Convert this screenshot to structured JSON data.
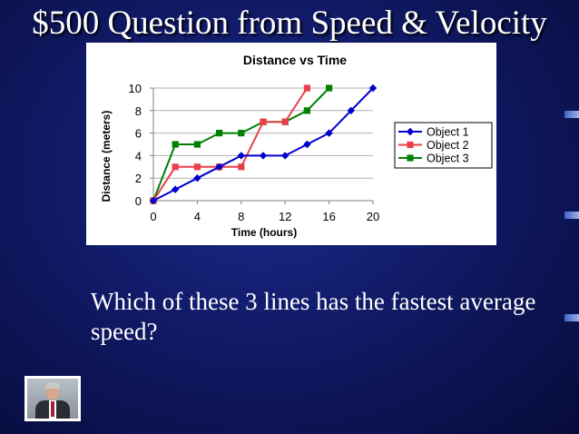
{
  "slide": {
    "title": "$500 Question from Speed & Velocity",
    "question": "Which of these 3 lines has the fastest average speed?"
  },
  "colors": {
    "background": "#101a66",
    "text": "#ffffff",
    "object_1": "#0000cc",
    "object_2": "#e8404a",
    "object_3": "#008000"
  },
  "icons": [
    "host-avatar"
  ],
  "chart_data": {
    "type": "line",
    "title": "Distance vs Time",
    "xlabel": "Time (hours)",
    "ylabel": "Distance (meters)",
    "xlim": [
      0,
      20
    ],
    "ylim": [
      0,
      10
    ],
    "x_ticks": [
      0,
      4,
      8,
      12,
      16,
      20
    ],
    "y_ticks": [
      0,
      2,
      4,
      6,
      8,
      10
    ],
    "legend": "right",
    "grid": "horizontal",
    "series": [
      {
        "name": "Object 1",
        "marker": "diamond",
        "color": "#0000cc",
        "points": [
          [
            0,
            0
          ],
          [
            2,
            1
          ],
          [
            4,
            2
          ],
          [
            6,
            3
          ],
          [
            8,
            4
          ],
          [
            10,
            4
          ],
          [
            12,
            4
          ],
          [
            14,
            5
          ],
          [
            16,
            6
          ],
          [
            18,
            8
          ],
          [
            20,
            10
          ]
        ]
      },
      {
        "name": "Object 2",
        "marker": "square",
        "color": "#e8404a",
        "points": [
          [
            0,
            0
          ],
          [
            2,
            3
          ],
          [
            4,
            3
          ],
          [
            6,
            3
          ],
          [
            8,
            3
          ],
          [
            10,
            7
          ],
          [
            12,
            7
          ],
          [
            14,
            10
          ]
        ]
      },
      {
        "name": "Object 3",
        "marker": "square",
        "color": "#008000",
        "points": [
          [
            0,
            0
          ],
          [
            2,
            5
          ],
          [
            4,
            5
          ],
          [
            6,
            6
          ],
          [
            8,
            6
          ],
          [
            10,
            7
          ],
          [
            12,
            7
          ],
          [
            14,
            8
          ],
          [
            16,
            10
          ]
        ]
      }
    ]
  }
}
